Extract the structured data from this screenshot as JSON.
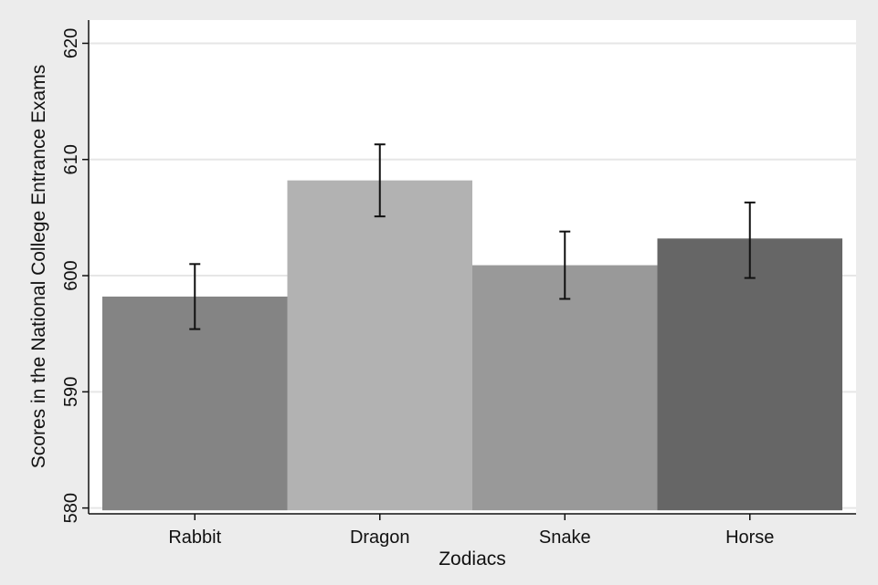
{
  "chart_data": {
    "type": "bar",
    "title": "",
    "xlabel": "Zodiacs",
    "ylabel": "Scores in the National College Entrance Exams",
    "categories": [
      "Rabbit",
      "Dragon",
      "Snake",
      "Horse"
    ],
    "values": [
      598.2,
      608.2,
      600.9,
      603.2
    ],
    "error_low": [
      595.4,
      605.1,
      598.0,
      599.8
    ],
    "error_high": [
      601.0,
      611.3,
      603.8,
      606.3
    ],
    "ylim": [
      579.5,
      622
    ],
    "yticks": [
      "580",
      "590",
      "600",
      "610",
      "620"
    ],
    "grid": true,
    "legend": "none",
    "colors": {
      "plot_background": "#ffffff",
      "page_background": "#ececec",
      "grid": "#e6e6e6",
      "bars": [
        "#848484",
        "#b2b2b2",
        "#999999",
        "#666666"
      ],
      "error_bars": "#111111"
    }
  }
}
